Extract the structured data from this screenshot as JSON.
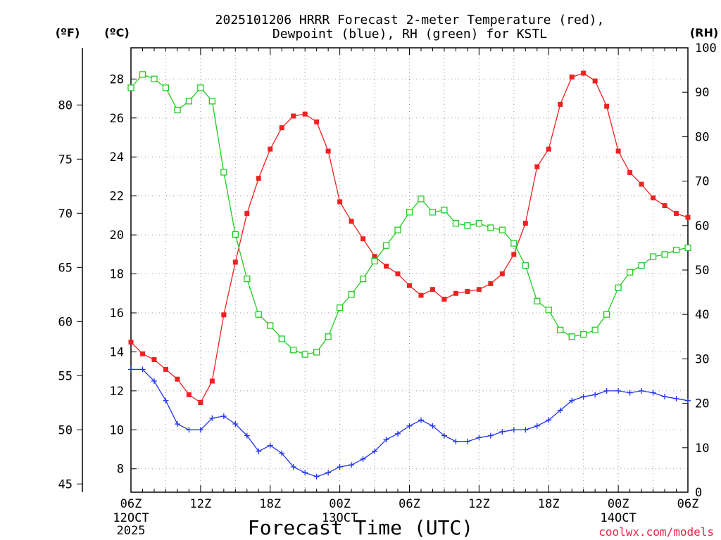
{
  "chart_data": {
    "type": "line",
    "title_line1": "2025101206 HRRR Forecast 2-meter Temperature (red),",
    "title_line2": "Dewpoint (blue), RH (green) for KSTL",
    "xlabel": "Forecast Time (UTC)",
    "credit": "coolwx.com/models",
    "unit_labels": {
      "fahrenheit": "(ºF)",
      "celsius": "(ºC)",
      "rh": "(RH)"
    },
    "x_range_hours": [
      0,
      48
    ],
    "x_ticks": [
      {
        "h": 0,
        "label": "06Z",
        "sub": "12OCT",
        "sub2": "2025"
      },
      {
        "h": 6,
        "label": "12Z",
        "sub": "",
        "sub2": ""
      },
      {
        "h": 12,
        "label": "18Z",
        "sub": "",
        "sub2": ""
      },
      {
        "h": 18,
        "label": "00Z",
        "sub": "13OCT",
        "sub2": ""
      },
      {
        "h": 24,
        "label": "06Z",
        "sub": "",
        "sub2": ""
      },
      {
        "h": 30,
        "label": "12Z",
        "sub": "",
        "sub2": ""
      },
      {
        "h": 36,
        "label": "18Z",
        "sub": "",
        "sub2": ""
      },
      {
        "h": 42,
        "label": "00Z",
        "sub": "14OCT",
        "sub2": ""
      },
      {
        "h": 48,
        "label": "06Z",
        "sub": "",
        "sub2": ""
      }
    ],
    "celsius_range": [
      6.8,
      29.6
    ],
    "celsius_ticks": [
      "8",
      "10",
      "12",
      "14",
      "16",
      "18",
      "20",
      "22",
      "24",
      "26",
      "28"
    ],
    "fahrenheit_ticks": [
      "45",
      "50",
      "55",
      "60",
      "65",
      "70",
      "75",
      "80"
    ],
    "rh_range": [
      0,
      100
    ],
    "rh_ticks": [
      "0",
      "10",
      "20",
      "30",
      "40",
      "50",
      "60",
      "70",
      "80",
      "90",
      "100"
    ],
    "series": [
      {
        "name": "2-meter Temperature",
        "units": "C",
        "color": "#ee2222",
        "marker": "filled-square",
        "values": [
          14.5,
          13.9,
          13.6,
          13.1,
          12.6,
          11.8,
          11.4,
          12.5,
          15.9,
          18.6,
          21.1,
          22.9,
          24.4,
          25.5,
          26.1,
          26.2,
          25.8,
          24.3,
          21.7,
          20.7,
          19.8,
          18.9,
          18.4,
          18.0,
          17.4,
          16.9,
          17.2,
          16.7,
          17.0,
          17.1,
          17.2,
          17.5,
          18.0,
          19.0,
          20.6,
          23.5,
          24.4,
          26.7,
          28.1,
          28.3,
          27.9,
          26.6,
          24.3,
          23.2,
          22.6,
          21.9,
          21.5,
          21.1,
          20.9
        ]
      },
      {
        "name": "Dewpoint",
        "units": "C",
        "color": "#2233ee",
        "marker": "plus",
        "values": [
          13.1,
          13.1,
          12.5,
          11.5,
          10.3,
          10.0,
          10.0,
          10.6,
          10.7,
          10.3,
          9.7,
          8.9,
          9.2,
          8.8,
          8.1,
          7.8,
          7.6,
          7.8,
          8.1,
          8.2,
          8.5,
          8.9,
          9.5,
          9.8,
          10.2,
          10.5,
          10.2,
          9.7,
          9.4,
          9.4,
          9.6,
          9.7,
          9.9,
          10.0,
          10.0,
          10.2,
          10.5,
          11.0,
          11.5,
          11.7,
          11.8,
          12.0,
          12.0,
          11.9,
          12.0,
          11.9,
          11.7,
          11.6,
          11.5
        ]
      },
      {
        "name": "RH",
        "units": "%",
        "color": "#22cc22",
        "marker": "open-square",
        "values": [
          91,
          94,
          93,
          91,
          86,
          88,
          91,
          88,
          72,
          58,
          48,
          40,
          37.5,
          34.5,
          32,
          31,
          31.5,
          35,
          41.5,
          44.5,
          48,
          52,
          55.5,
          59,
          63,
          66,
          63,
          63.5,
          60.5,
          60,
          60.5,
          59.5,
          59,
          56,
          51,
          43,
          41,
          36.5,
          35,
          35.5,
          36.5,
          40,
          46,
          49.5,
          51,
          53,
          53.5,
          54.5,
          55
        ]
      }
    ]
  }
}
